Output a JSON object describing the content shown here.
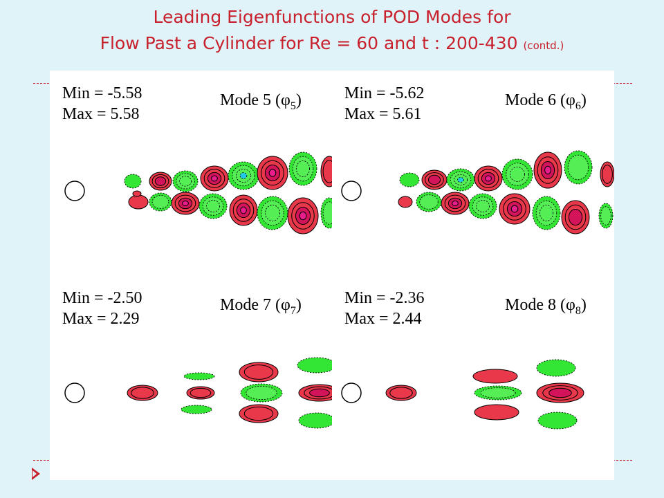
{
  "title": {
    "line1": "Leading Eigenfunctions of POD Modes for",
    "line2": "Flow Past a Cylinder for Re = 60 and t : 200-430",
    "suffix": "(contd.)"
  },
  "panels": [
    {
      "min": "Min = -5.58",
      "max": "Max = 5.58",
      "mode_label": "Mode 5 (",
      "phi": "φ",
      "sub": "5",
      "close": ")"
    },
    {
      "min": "Min = -5.62",
      "max": "Max = 5.61",
      "mode_label": "Mode 6 (",
      "phi": "φ",
      "sub": "6",
      "close": ")"
    },
    {
      "min": "Min = -2.50",
      "max": "Max = 2.29",
      "mode_label": "Mode 7 (",
      "phi": "φ",
      "sub": "7",
      "close": ")"
    },
    {
      "min": "Min = -2.36",
      "max": "Max = 2.44",
      "mode_label": "Mode 8 (",
      "phi": "φ",
      "sub": "8",
      "close": ")"
    }
  ],
  "colors": {
    "accent": "#c8202c",
    "background": "#dff3f8",
    "positive": "#e8384a",
    "positive_core": "#d4145a",
    "positive_peak": "#e81e8c",
    "negative": "#33e633",
    "negative_core": "#55ee55",
    "negative_peak": "#22c8e8"
  }
}
